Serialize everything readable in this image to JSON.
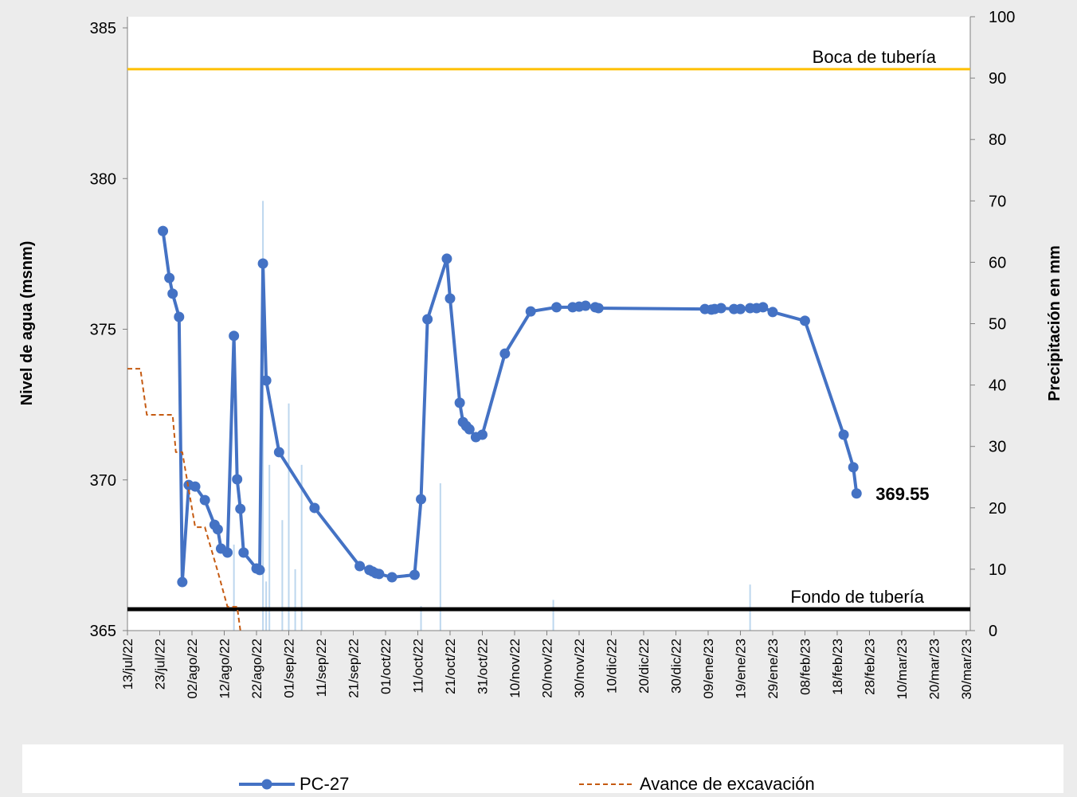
{
  "chart_data": {
    "type": "line",
    "y_title": "Nivel de agua (msnm)",
    "y2_title": "Precipitación en mm",
    "xlim": [
      "2022-07-13",
      "2023-03-31"
    ],
    "xticks": [
      {
        "value": "2022-07-13",
        "label": "13/jul/22"
      },
      {
        "value": "2022-07-23",
        "label": "23/jul/22"
      },
      {
        "value": "2022-08-02",
        "label": "02/ago/22"
      },
      {
        "value": "2022-08-12",
        "label": "12/ago/22"
      },
      {
        "value": "2022-08-22",
        "label": "22/ago/22"
      },
      {
        "value": "2022-09-01",
        "label": "01/sep/22"
      },
      {
        "value": "2022-09-11",
        "label": "11/sep/22"
      },
      {
        "value": "2022-09-21",
        "label": "21/sep/22"
      },
      {
        "value": "2022-10-01",
        "label": "01/oct/22"
      },
      {
        "value": "2022-10-11",
        "label": "11/oct/22"
      },
      {
        "value": "2022-10-21",
        "label": "21/oct/22"
      },
      {
        "value": "2022-10-31",
        "label": "31/oct/22"
      },
      {
        "value": "2022-11-10",
        "label": "10/nov/22"
      },
      {
        "value": "2022-11-20",
        "label": "20/nov/22"
      },
      {
        "value": "2022-11-30",
        "label": "30/nov/22"
      },
      {
        "value": "2022-12-10",
        "label": "10/dic/22"
      },
      {
        "value": "2022-12-20",
        "label": "20/dic/22"
      },
      {
        "value": "2022-12-30",
        "label": "30/dic/22"
      },
      {
        "value": "2023-01-09",
        "label": "09/ene/23"
      },
      {
        "value": "2023-01-19",
        "label": "19/ene/23"
      },
      {
        "value": "2023-01-29",
        "label": "29/ene/23"
      },
      {
        "value": "2023-02-08",
        "label": "08/feb/23"
      },
      {
        "value": "2023-02-18",
        "label": "18/feb/23"
      },
      {
        "value": "2023-02-28",
        "label": "28/feb/23"
      },
      {
        "value": "2023-03-10",
        "label": "10/mar/23"
      },
      {
        "value": "2023-03-20",
        "label": "20/mar/23"
      },
      {
        "value": "2023-03-30",
        "label": "30/mar/23"
      }
    ],
    "ylim": [
      365,
      385.37
    ],
    "yticks": [
      365,
      370,
      375,
      380,
      385
    ],
    "y2lim": [
      0,
      100
    ],
    "y2ticks": [
      0,
      10,
      20,
      30,
      40,
      50,
      60,
      70,
      80,
      90,
      100
    ],
    "grid": false,
    "legend": "bottom",
    "reference_lines": [
      {
        "label": "Boca de tubería",
        "value": 383.63,
        "color": "#ffc000"
      },
      {
        "label": "Fondo de tubería",
        "value": 365.71,
        "color": "#000000"
      }
    ],
    "series": [
      {
        "type": "bar",
        "axis": "y2",
        "color": "#bdd7ee",
        "x": [
          "2022-08-15",
          "2022-08-24",
          "2022-08-25",
          "2022-08-26",
          "2022-08-30",
          "2022-09-01",
          "2022-09-03",
          "2022-09-05",
          "2022-10-12",
          "2022-10-18",
          "2022-11-22",
          "2023-01-22"
        ],
        "values": [
          14,
          70,
          8,
          27,
          18,
          37,
          10,
          27,
          4,
          24,
          5,
          7.5
        ]
      },
      {
        "type": "line",
        "name": "PC-27",
        "color": "#4472c4",
        "markers": true,
        "label_last": true,
        "x": [
          "2022-07-24",
          "2022-07-26",
          "2022-07-27",
          "2022-07-29",
          "2022-07-30",
          "2022-08-01",
          "2022-08-03",
          "2022-08-06",
          "2022-08-09",
          "2022-08-10",
          "2022-08-11",
          "2022-08-13",
          "2022-08-15",
          "2022-08-16",
          "2022-08-17",
          "2022-08-18",
          "2022-08-22",
          "2022-08-23",
          "2022-08-24",
          "2022-08-25",
          "2022-08-29",
          "2022-09-09",
          "2022-09-23",
          "2022-09-26",
          "2022-09-27",
          "2022-09-28",
          "2022-09-29",
          "2022-10-03",
          "2022-10-10",
          "2022-10-12",
          "2022-10-14",
          "2022-10-20",
          "2022-10-21",
          "2022-10-24",
          "2022-10-25",
          "2022-10-26",
          "2022-10-27",
          "2022-10-29",
          "2022-10-31",
          "2022-11-07",
          "2022-11-15",
          "2022-11-23",
          "2022-11-28",
          "2022-11-30",
          "2022-12-02",
          "2022-12-05",
          "2022-12-06",
          "2023-01-08",
          "2023-01-10",
          "2023-01-11",
          "2023-01-13",
          "2023-01-17",
          "2023-01-19",
          "2023-01-22",
          "2023-01-24",
          "2023-01-26",
          "2023-01-29",
          "2023-02-08",
          "2023-02-20",
          "2023-02-23",
          "2023-02-24"
        ],
        "values": [
          378.26,
          376.7,
          376.18,
          375.41,
          366.61,
          369.83,
          369.78,
          369.33,
          368.51,
          368.36,
          367.72,
          367.59,
          374.78,
          370.02,
          369.04,
          367.59,
          367.06,
          367.01,
          377.18,
          373.3,
          370.92,
          369.07,
          367.14,
          367.01,
          366.96,
          366.9,
          366.88,
          366.77,
          366.85,
          369.36,
          375.33,
          377.34,
          376.02,
          372.56,
          371.92,
          371.79,
          371.68,
          371.42,
          371.5,
          374.19,
          375.59,
          375.73,
          375.73,
          375.75,
          375.78,
          375.73,
          375.7,
          375.67,
          375.65,
          375.67,
          375.7,
          375.67,
          375.67,
          375.7,
          375.7,
          375.73,
          375.57,
          375.28,
          371.5,
          370.42,
          369.55
        ]
      },
      {
        "type": "line",
        "name": "Avance de excavación",
        "color": "#c55a11",
        "dashed": true,
        "x": [
          "2022-07-13",
          "2022-07-17",
          "2022-07-19",
          "2022-07-27",
          "2022-07-28",
          "2022-07-30",
          "2022-08-03",
          "2022-08-06",
          "2022-08-10",
          "2022-08-13",
          "2022-08-16",
          "2022-08-17"
        ],
        "values": [
          373.69,
          373.69,
          372.16,
          372.16,
          370.92,
          370.92,
          368.43,
          368.43,
          366.96,
          365.79,
          365.79,
          365.0
        ]
      }
    ]
  }
}
